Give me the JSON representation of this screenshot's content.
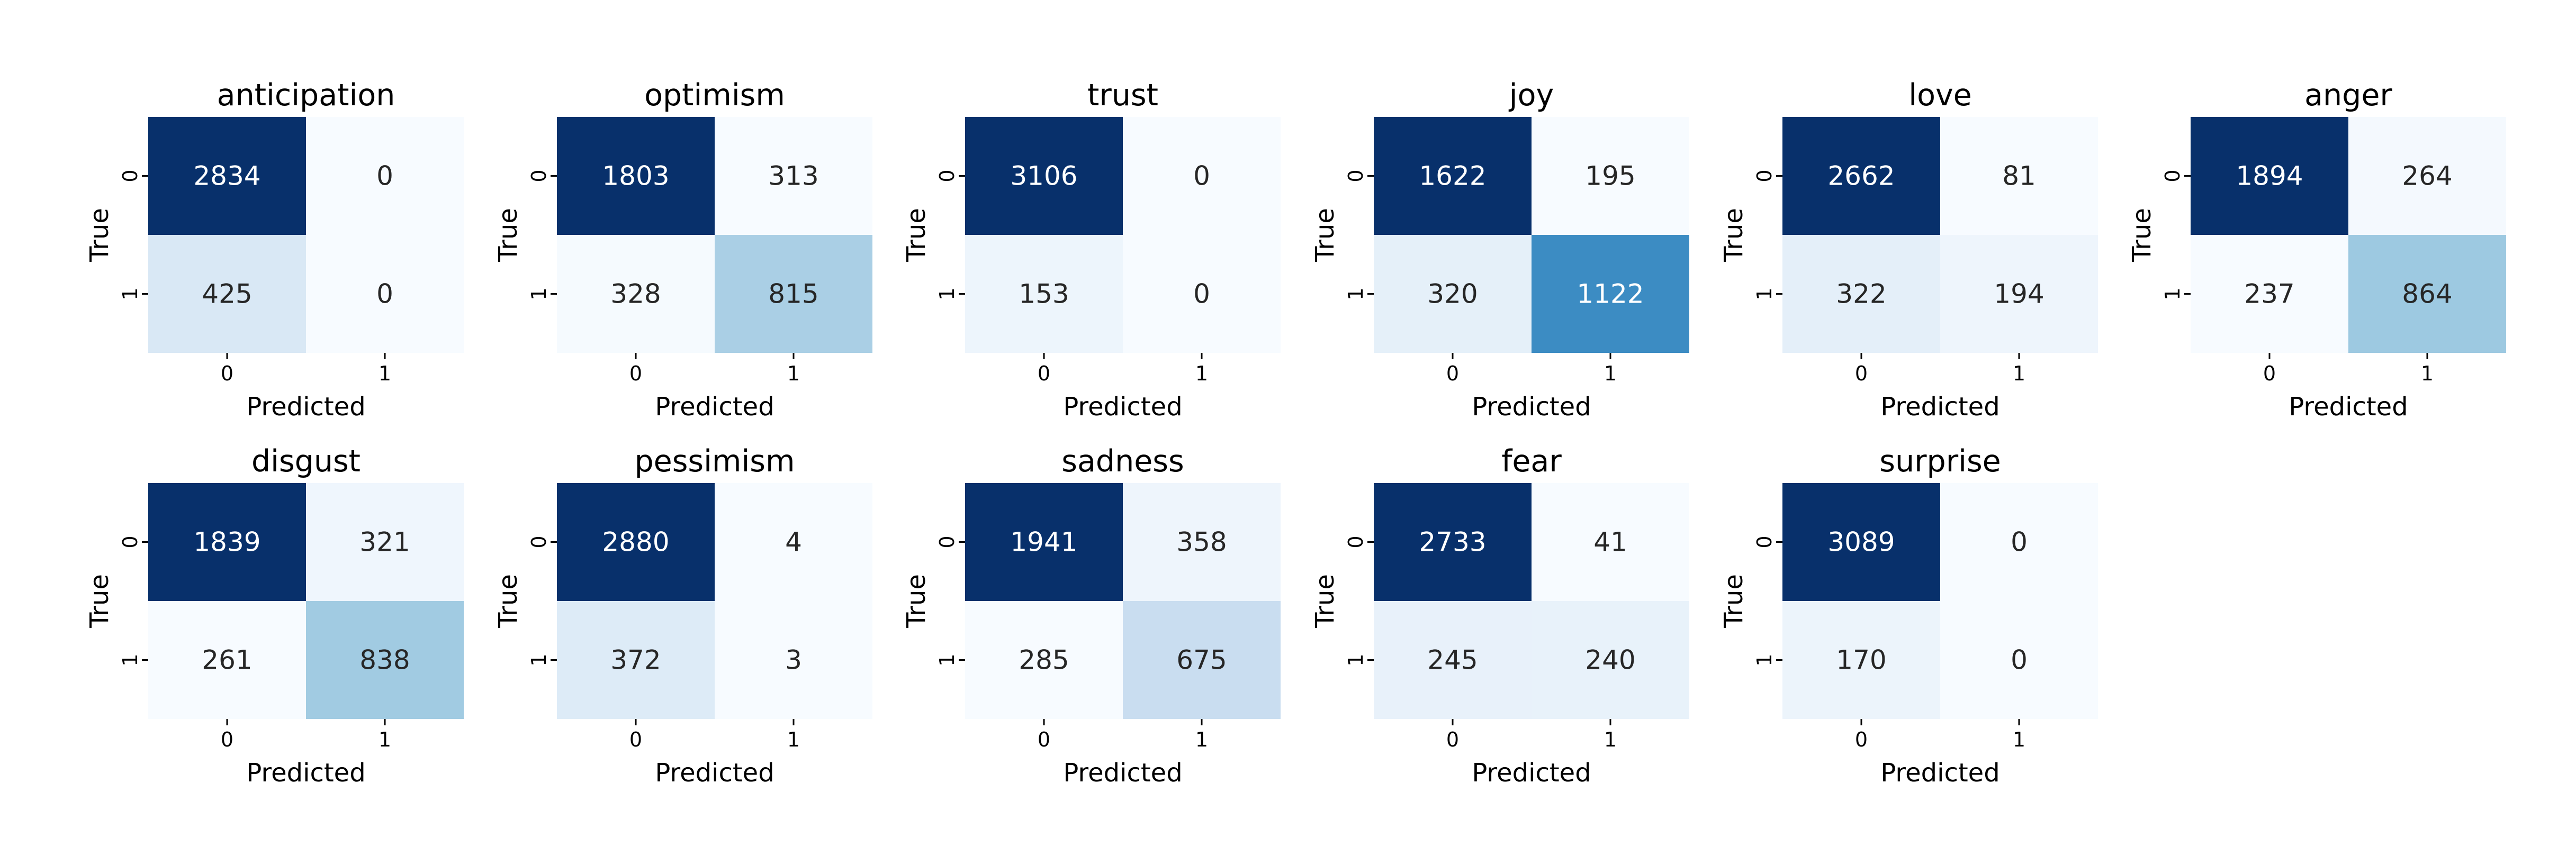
{
  "chart_data": [
    {
      "type": "heatmap",
      "title": "anticipation",
      "xlabel": "Predicted",
      "ylabel": "True",
      "x_ticks": [
        "0",
        "1"
      ],
      "y_ticks": [
        "0",
        "1"
      ],
      "values": [
        [
          2834,
          0
        ],
        [
          425,
          0
        ]
      ],
      "colormap": "Blues"
    },
    {
      "type": "heatmap",
      "title": "optimism",
      "xlabel": "Predicted",
      "ylabel": "True",
      "x_ticks": [
        "0",
        "1"
      ],
      "y_ticks": [
        "0",
        "1"
      ],
      "values": [
        [
          1803,
          313
        ],
        [
          328,
          815
        ]
      ],
      "colormap": "Blues"
    },
    {
      "type": "heatmap",
      "title": "trust",
      "xlabel": "Predicted",
      "ylabel": "True",
      "x_ticks": [
        "0",
        "1"
      ],
      "y_ticks": [
        "0",
        "1"
      ],
      "values": [
        [
          3106,
          0
        ],
        [
          153,
          0
        ]
      ],
      "colormap": "Blues"
    },
    {
      "type": "heatmap",
      "title": "joy",
      "xlabel": "Predicted",
      "ylabel": "True",
      "x_ticks": [
        "0",
        "1"
      ],
      "y_ticks": [
        "0",
        "1"
      ],
      "values": [
        [
          1622,
          195
        ],
        [
          320,
          1122
        ]
      ],
      "colormap": "Blues"
    },
    {
      "type": "heatmap",
      "title": "love",
      "xlabel": "Predicted",
      "ylabel": "True",
      "x_ticks": [
        "0",
        "1"
      ],
      "y_ticks": [
        "0",
        "1"
      ],
      "values": [
        [
          2662,
          81
        ],
        [
          322,
          194
        ]
      ],
      "colormap": "Blues"
    },
    {
      "type": "heatmap",
      "title": "anger",
      "xlabel": "Predicted",
      "ylabel": "True",
      "x_ticks": [
        "0",
        "1"
      ],
      "y_ticks": [
        "0",
        "1"
      ],
      "values": [
        [
          1894,
          264
        ],
        [
          237,
          864
        ]
      ],
      "colormap": "Blues"
    },
    {
      "type": "heatmap",
      "title": "disgust",
      "xlabel": "Predicted",
      "ylabel": "True",
      "x_ticks": [
        "0",
        "1"
      ],
      "y_ticks": [
        "0",
        "1"
      ],
      "values": [
        [
          1839,
          321
        ],
        [
          261,
          838
        ]
      ],
      "colormap": "Blues"
    },
    {
      "type": "heatmap",
      "title": "pessimism",
      "xlabel": "Predicted",
      "ylabel": "True",
      "x_ticks": [
        "0",
        "1"
      ],
      "y_ticks": [
        "0",
        "1"
      ],
      "values": [
        [
          2880,
          4
        ],
        [
          372,
          3
        ]
      ],
      "colormap": "Blues"
    },
    {
      "type": "heatmap",
      "title": "sadness",
      "xlabel": "Predicted",
      "ylabel": "True",
      "x_ticks": [
        "0",
        "1"
      ],
      "y_ticks": [
        "0",
        "1"
      ],
      "values": [
        [
          1941,
          358
        ],
        [
          285,
          675
        ]
      ],
      "colormap": "Blues"
    },
    {
      "type": "heatmap",
      "title": "fear",
      "xlabel": "Predicted",
      "ylabel": "True",
      "x_ticks": [
        "0",
        "1"
      ],
      "y_ticks": [
        "0",
        "1"
      ],
      "values": [
        [
          2733,
          41
        ],
        [
          245,
          240
        ]
      ],
      "colormap": "Blues"
    },
    {
      "type": "heatmap",
      "title": "surprise",
      "xlabel": "Predicted",
      "ylabel": "True",
      "x_ticks": [
        "0",
        "1"
      ],
      "y_ticks": [
        "0",
        "1"
      ],
      "values": [
        [
          3089,
          0
        ],
        [
          170,
          0
        ]
      ],
      "colormap": "Blues"
    }
  ]
}
